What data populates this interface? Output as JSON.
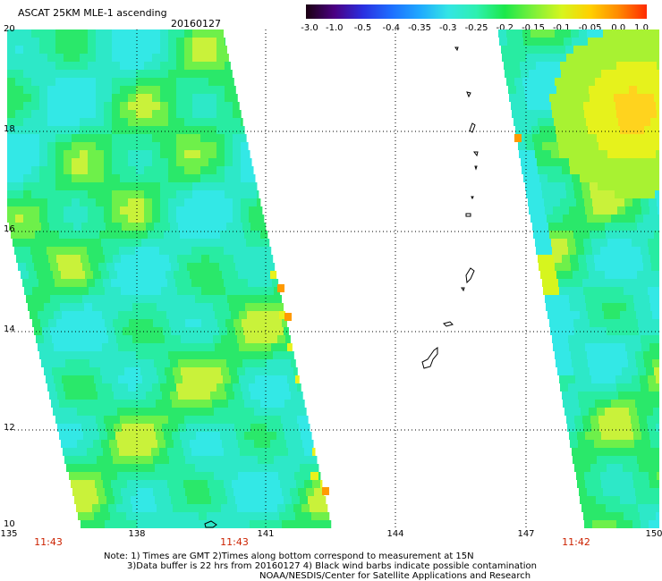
{
  "header": {
    "title": "ASCAT 25KM MLE-1 ascending",
    "date": "20160127"
  },
  "colorbar": {
    "labels": [
      "-3.0",
      "-1.0",
      "-0.5",
      "-0.4",
      "-0.35",
      "-0.3",
      "-0.25",
      "-0.2",
      "-0.15",
      "-0.1",
      "-0.05",
      "0.0",
      "1.0"
    ],
    "colors": [
      "#1a0010",
      "#4b0082",
      "#2a2fe0",
      "#1e6eff",
      "#1fa8ff",
      "#33e5e5",
      "#2ef0b0",
      "#1be84a",
      "#7cf03a",
      "#d6f51e",
      "#ffd000",
      "#ff8a00",
      "#ff2a00"
    ]
  },
  "map": {
    "lat_labels": [
      "20",
      "18",
      "16",
      "14",
      "12",
      "10"
    ],
    "lon_labels": [
      "135",
      "138",
      "141",
      "144",
      "147",
      "150"
    ],
    "times": [
      "11:43",
      "11:43",
      "11:42"
    ]
  },
  "notes": {
    "line1": "Note: 1) Times are GMT 2)Times along bottom correspond to measurement at 15N",
    "line2": "3)Data buffer is 22 hrs from 20160127 4) Black wind barbs indicate possible contamination",
    "line3": "NOAA/NESDIS/Center for Satellite Applications and Research"
  }
}
